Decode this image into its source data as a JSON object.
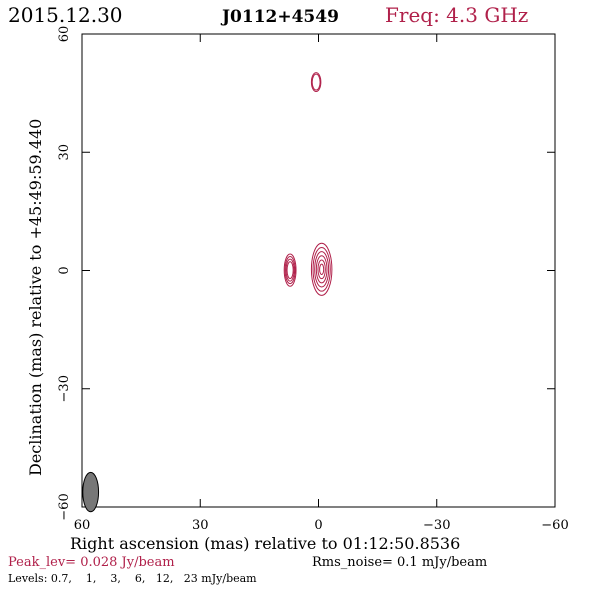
{
  "header": {
    "date": "2015.12.30",
    "source": "J0112+4549",
    "freq": "Freq: 4.3 GHz"
  },
  "footer": {
    "peak": "Peak_lev=  0.028 Jy/beam",
    "rms": "Rms_noise=  0.1 mJy/beam",
    "levels": "Levels: 0.7,    1,    3,    6,   12,   23 mJy/beam"
  },
  "colors": {
    "accent": "#b0204a",
    "axis": "#000000",
    "beam_fill": "#777777"
  },
  "chart_data": {
    "type": "contour",
    "xlabel": "Right ascension (mas) relative to 01:12:50.8536",
    "ylabel": "Declination (mas) relative to +45:49:59.440",
    "xlim": [
      60,
      -60
    ],
    "ylim": [
      -60,
      60
    ],
    "x_ticks": [
      60,
      30,
      0,
      -30,
      -60
    ],
    "y_ticks": [
      -60,
      -30,
      0,
      30,
      60
    ],
    "x_tick_labels": [
      "60",
      "30",
      "0",
      "−30",
      "−60"
    ],
    "y_tick_labels": [
      "−60",
      "−30",
      "0",
      "30",
      "60"
    ],
    "contour_levels_mJy": [
      0.7,
      1,
      3,
      6,
      12,
      23
    ],
    "peak_Jy_per_beam": 0.028,
    "rms_noise_mJy_per_beam": 0.1,
    "components": [
      {
        "x": -0.8,
        "y": 0.3,
        "sx": 2.6,
        "sy": 6.6,
        "levels": 6
      },
      {
        "x": 7.2,
        "y": 0.1,
        "sx": 1.5,
        "sy": 4.1,
        "levels": 4
      },
      {
        "x": 0.6,
        "y": 47.8,
        "sx": 1.2,
        "sy": 2.4,
        "levels": 2
      }
    ],
    "beam": {
      "x": 57.8,
      "y": -56.2,
      "major": 5.0,
      "minor": 2.0,
      "pa_deg": 0
    }
  }
}
